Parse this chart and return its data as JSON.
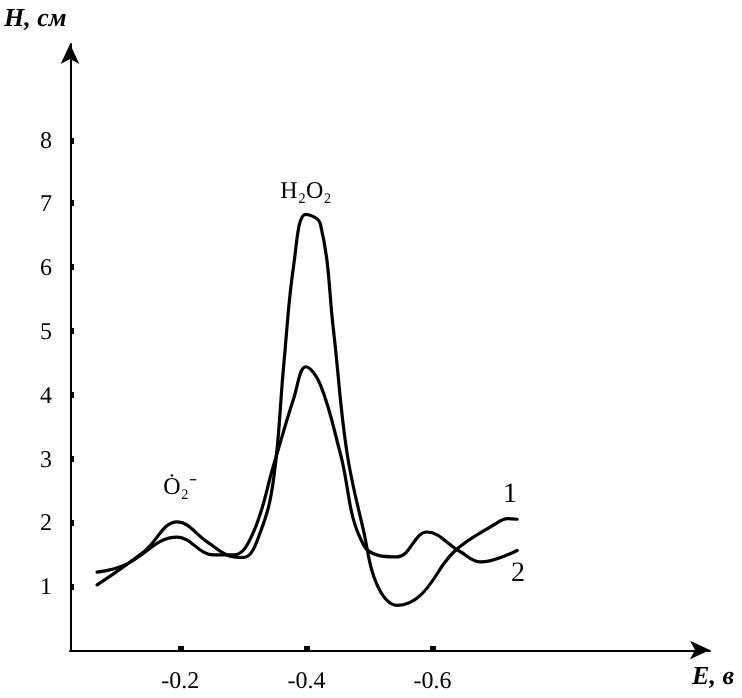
{
  "chart_data": {
    "type": "line",
    "xlabel": "E, в",
    "ylabel": "H, см",
    "xlim": [
      -0.025,
      -1.04
    ],
    "ylim": [
      0,
      9.5
    ],
    "xticks": [
      -0.2,
      -0.4,
      -0.6
    ],
    "yticks": [
      1,
      2,
      3,
      4,
      5,
      6,
      7,
      8
    ],
    "grid": false,
    "legend": false,
    "marker": "none",
    "line_style": "solid",
    "series": [
      {
        "name": "1",
        "color": "#000000",
        "x": [
          -0.068,
          -0.142,
          -0.195,
          -0.242,
          -0.274,
          -0.3,
          -0.327,
          -0.348,
          -0.364,
          -0.38,
          -0.399,
          -0.422,
          -0.443,
          -0.464,
          -0.491,
          -0.512,
          -0.544,
          -0.581,
          -0.634,
          -0.697,
          -0.719,
          -0.734
        ],
        "values": [
          1.02,
          1.54,
          2.01,
          1.7,
          1.49,
          1.45,
          1.85,
          2.69,
          4.47,
          6.05,
          6.83,
          6.68,
          5.0,
          3.11,
          1.85,
          1.02,
          0.7,
          0.86,
          1.54,
          1.96,
          2.06,
          2.05
        ]
      },
      {
        "name": "2",
        "color": "#000000",
        "x": [
          -0.068,
          -0.111,
          -0.195,
          -0.253,
          -0.285,
          -0.316,
          -0.348,
          -0.38,
          -0.399,
          -0.422,
          -0.453,
          -0.491,
          -0.544,
          -0.591,
          -0.644,
          -0.676,
          -0.734
        ],
        "values": [
          1.22,
          1.33,
          1.77,
          1.49,
          1.49,
          1.85,
          2.9,
          3.95,
          4.44,
          4.16,
          3.11,
          1.64,
          1.46,
          1.85,
          1.54,
          1.38,
          1.56
        ]
      }
    ],
    "annotations": [
      "H₂O₂",
      "Ȯ₂⁻"
    ]
  }
}
